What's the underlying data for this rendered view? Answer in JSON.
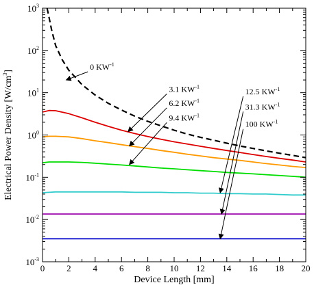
{
  "chart_data": {
    "type": "line",
    "title": "",
    "xlabel": "Device Length [mm]",
    "ylabel": "Electrical Power Density [W/cm",
    "ylabel_sup": "3",
    "ylabel_end": "]",
    "xlim": [
      0,
      20
    ],
    "ylim": [
      0.001,
      1000
    ],
    "yscale": "log",
    "grid": false,
    "x_ticks": [
      0,
      2,
      4,
      6,
      8,
      10,
      12,
      14,
      16,
      18,
      20
    ],
    "x_tick_labels": [
      "0",
      "2",
      "4",
      "6",
      "8",
      "10",
      "12",
      "14",
      "16",
      "18",
      "20"
    ],
    "y_tick_base": "10",
    "y_tick_exponents": [
      "-3",
      "-2",
      "-1",
      "0",
      "1",
      "2",
      "3"
    ],
    "y_tick_values": [
      0.001,
      0.01,
      0.1,
      1,
      10,
      100,
      1000
    ],
    "x": [
      0,
      0.5,
      1,
      2,
      3,
      4,
      5,
      6,
      7,
      8,
      9,
      10,
      11,
      12,
      13,
      14,
      15,
      16,
      17,
      18,
      19,
      20
    ],
    "series": [
      {
        "name": "0 KW",
        "color": "#000000",
        "dash": true,
        "x": [
          0.35,
          0.5,
          0.7,
          1,
          1.5,
          2,
          3,
          4,
          5,
          6,
          7,
          8,
          9,
          10,
          11,
          12,
          13,
          14,
          15,
          16,
          17,
          18,
          19,
          20
        ],
        "values": [
          1000,
          600,
          300,
          130,
          60,
          34,
          15.5,
          8.8,
          5.6,
          3.9,
          2.8,
          2.1,
          1.65,
          1.3,
          1.05,
          0.88,
          0.75,
          0.64,
          0.55,
          0.48,
          0.42,
          0.37,
          0.33,
          0.29
        ]
      },
      {
        "name": "3.1 KW",
        "color": "#dd0000",
        "dash": false,
        "values": [
          3.5,
          3.8,
          3.75,
          3.2,
          2.55,
          2.0,
          1.6,
          1.3,
          1.08,
          0.92,
          0.79,
          0.69,
          0.61,
          0.54,
          0.48,
          0.43,
          0.385,
          0.345,
          0.31,
          0.28,
          0.255,
          0.23
        ]
      },
      {
        "name": "6.2 KW",
        "color": "#ff9900",
        "dash": false,
        "values": [
          0.9,
          0.93,
          0.93,
          0.9,
          0.82,
          0.73,
          0.66,
          0.59,
          0.53,
          0.48,
          0.43,
          0.39,
          0.35,
          0.32,
          0.29,
          0.27,
          0.25,
          0.23,
          0.21,
          0.195,
          0.18,
          0.17
        ]
      },
      {
        "name": "9.4 KW",
        "color": "#00dd00",
        "dash": false,
        "values": [
          0.22,
          0.23,
          0.23,
          0.23,
          0.225,
          0.215,
          0.205,
          0.195,
          0.185,
          0.175,
          0.165,
          0.158,
          0.15,
          0.143,
          0.137,
          0.13,
          0.125,
          0.12,
          0.115,
          0.11,
          0.105,
          0.1
        ]
      },
      {
        "name": "12.5 KW",
        "color": "#33cccc",
        "dash": false,
        "values": [
          0.043,
          0.044,
          0.045,
          0.045,
          0.045,
          0.045,
          0.045,
          0.045,
          0.044,
          0.044,
          0.044,
          0.043,
          0.043,
          0.042,
          0.042,
          0.041,
          0.041,
          0.04,
          0.04,
          0.039,
          0.038,
          0.038
        ]
      },
      {
        "name": "31.3 KW",
        "color": "#9900aa",
        "dash": false,
        "values": [
          0.0135,
          0.0135,
          0.0135,
          0.0135,
          0.0135,
          0.0135,
          0.0135,
          0.0135,
          0.0135,
          0.0135,
          0.0135,
          0.0135,
          0.0135,
          0.0135,
          0.0135,
          0.0135,
          0.0135,
          0.0135,
          0.0135,
          0.0135,
          0.0135,
          0.0135
        ]
      },
      {
        "name": "100 KW",
        "color": "#0000cc",
        "dash": false,
        "values": [
          0.0035,
          0.0035,
          0.0035,
          0.0035,
          0.0035,
          0.0035,
          0.0035,
          0.0035,
          0.0035,
          0.0035,
          0.0035,
          0.0035,
          0.0035,
          0.0035,
          0.0035,
          0.0035,
          0.0035,
          0.0035,
          0.0035,
          0.0035,
          0.0035,
          0.0035
        ]
      }
    ],
    "annotations": [
      {
        "text": "0 KW",
        "sup": "-1",
        "label_x": 3.6,
        "label_y": 35,
        "arrow_to_x": 1.8,
        "arrow_to_y": 20
      },
      {
        "text": "3.1 KW",
        "sup": "-1",
        "label_x": 9.6,
        "label_y": 10.5,
        "arrow_to_x": 6.5,
        "arrow_to_y": 1.2
      },
      {
        "text": "6.2 KW",
        "sup": "-1",
        "label_x": 9.6,
        "label_y": 4.9,
        "arrow_to_x": 6.6,
        "arrow_to_y": 0.55
      },
      {
        "text": "9.4 KW",
        "sup": "-1",
        "label_x": 9.6,
        "label_y": 2.2,
        "arrow_to_x": 6.6,
        "arrow_to_y": 0.2
      },
      {
        "text": "12.5 KW",
        "sup": "-1",
        "label_x": 15.4,
        "label_y": 9.2,
        "arrow_to_x": 13.5,
        "arrow_to_y": 0.043
      },
      {
        "text": "31.3 KW",
        "sup": "-1",
        "label_x": 15.4,
        "label_y": 4.0,
        "arrow_to_x": 13.6,
        "arrow_to_y": 0.0135
      },
      {
        "text": "100 KW",
        "sup": "-1",
        "label_x": 15.4,
        "label_y": 1.55,
        "arrow_to_x": 13.5,
        "arrow_to_y": 0.0035
      }
    ]
  }
}
